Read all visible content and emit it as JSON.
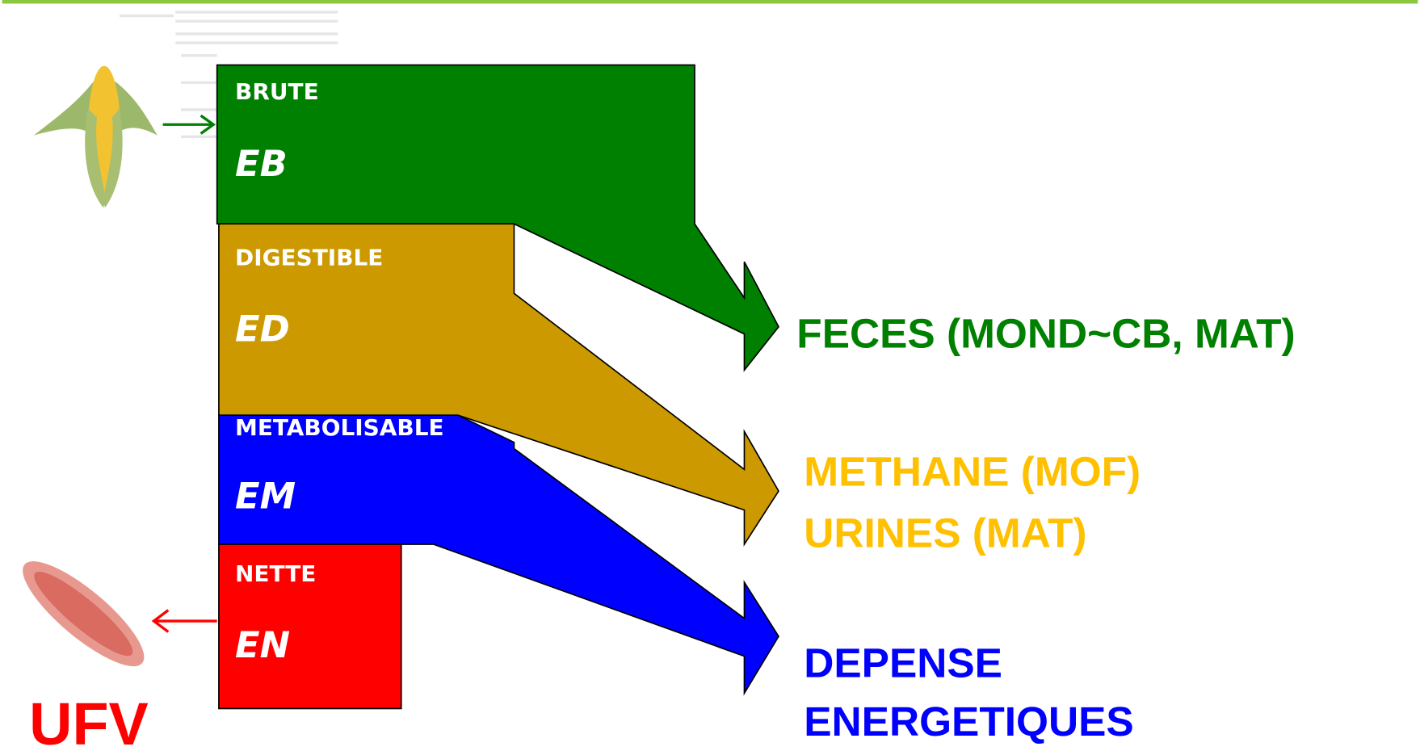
{
  "blocks": [
    {
      "label": "BRUTE",
      "abbr": "EB"
    },
    {
      "label": "DIGESTIBLE",
      "abbr": "ED"
    },
    {
      "label": "METABOLISABLE",
      "abbr": "EM"
    },
    {
      "label": "NETTE",
      "abbr": "EN"
    }
  ],
  "outputs": [
    {
      "lines": [
        "FECES (MOND~CB, MAT)"
      ]
    },
    {
      "lines": [
        "METHANE (MOF)",
        "URINES (MAT)"
      ]
    },
    {
      "lines": [
        "DEPENSE",
        "ENERGETIQUES"
      ]
    }
  ],
  "result": "UFV"
}
